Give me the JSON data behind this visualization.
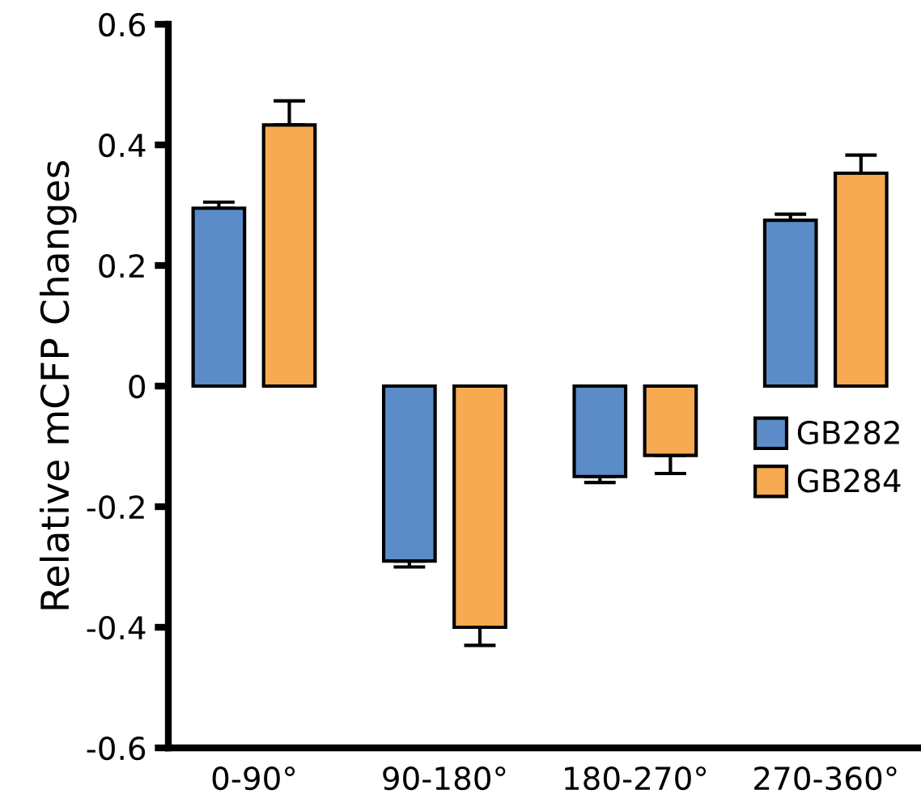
{
  "chart_data": {
    "type": "bar",
    "ylabel": "Relative mCFP Changes",
    "categories": [
      "0-90°",
      "90-180°",
      "180-270°",
      "270-360°"
    ],
    "series": [
      {
        "name": "GB282",
        "color": "#5b8cc8",
        "values": [
          0.295,
          -0.29,
          -0.15,
          0.275
        ],
        "errors": [
          [
            0.295,
            0.305
          ],
          [
            -0.3,
            -0.29
          ],
          [
            -0.16,
            -0.15
          ],
          [
            0.275,
            0.285
          ]
        ]
      },
      {
        "name": "GB284",
        "color": "#f6aa52",
        "values": [
          0.433,
          -0.4,
          -0.115,
          0.353
        ],
        "errors": [
          [
            0.433,
            0.473
          ],
          [
            -0.43,
            -0.4
          ],
          [
            -0.145,
            -0.115
          ],
          [
            0.353,
            0.383
          ]
        ]
      }
    ],
    "ylim": [
      -0.6,
      0.6
    ],
    "yticks": [
      -0.6,
      -0.4,
      -0.2,
      0,
      0.2,
      0.4,
      0.6
    ],
    "grid": false,
    "legend": "right"
  }
}
